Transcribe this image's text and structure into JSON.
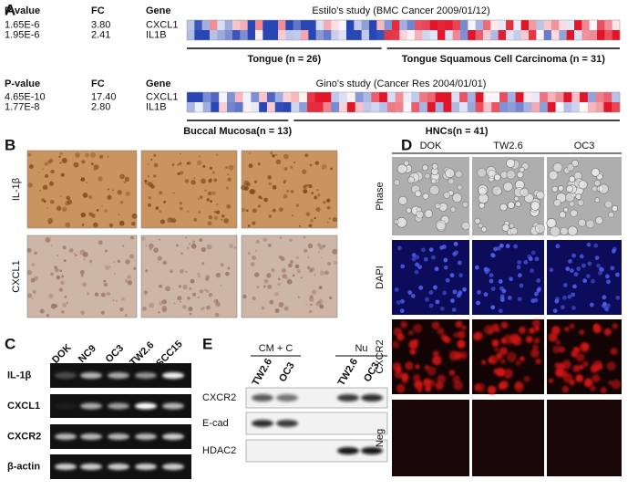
{
  "panel_a": {
    "label": "A",
    "studies": [
      {
        "headers": [
          "P-value",
          "FC",
          "Gene"
        ],
        "title": "Estilo's study (BMC Cancer 2009/01/12)",
        "rows": [
          [
            "1.65E-6",
            "3.80",
            "CXCL1"
          ],
          [
            "1.95E-6",
            "2.41",
            "IL1B"
          ]
        ],
        "groups": [
          "Tongue (n = 26)",
          "Tongue Squamous Cell Carcinoma (n = 31)"
        ]
      },
      {
        "headers": [
          "P-value",
          "FC",
          "Gene"
        ],
        "title": "Gino's study (Cancer Res 2004/01/01)",
        "rows": [
          [
            "4.65E-10",
            "17.40",
            "CXCL1"
          ],
          [
            "1.77E-8",
            "2.80",
            "IL1B"
          ]
        ],
        "groups": [
          "Buccal Mucosa(n = 13)",
          "HNCs(n = 41)"
        ]
      }
    ]
  },
  "panel_b": {
    "label": "B",
    "rows": [
      "IL-1β",
      "CXCL1"
    ]
  },
  "panel_c": {
    "label": "C",
    "lanes": [
      "DOK",
      "NC9",
      "OC3",
      "TW2.6",
      "SCC15"
    ],
    "rows": [
      "IL-1β",
      "CXCL1",
      "CXCR2",
      "β-actin"
    ]
  },
  "panel_d": {
    "label": "D",
    "columns": [
      "DOK",
      "TW2.6",
      "OC3"
    ],
    "rows": [
      "Phase",
      "DAPI",
      "CXCR2",
      "Neg"
    ]
  },
  "panel_e": {
    "label": "E",
    "groups": [
      "CM + C",
      "Nu"
    ],
    "lanes": [
      "TW2.6",
      "OC3",
      "TW2.6",
      "OC3"
    ],
    "rows": [
      "CXCR2",
      "E-cad",
      "HDAC2"
    ]
  }
}
